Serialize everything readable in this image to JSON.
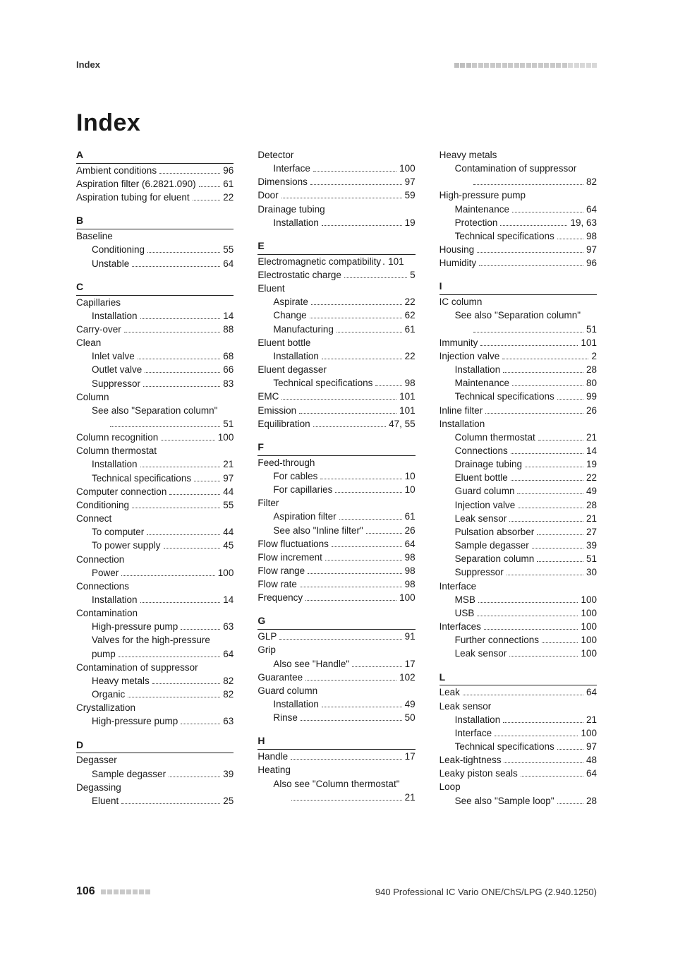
{
  "header": {
    "left": "Index"
  },
  "title": "Index",
  "footer": {
    "page": "106",
    "right": "940 Professional IC Vario ONE/ChS/LPG (2.940.1250)"
  },
  "squares_header": 24,
  "squares_footer": 8,
  "entries": [
    {
      "type": "letter",
      "text": "A",
      "first": true
    },
    {
      "label": "Ambient conditions",
      "pg": "96"
    },
    {
      "label": "Aspiration filter (6.2821.090)",
      "pg": "61"
    },
    {
      "label": "Aspiration tubing for eluent",
      "pg": "22"
    },
    {
      "type": "letter",
      "text": "B"
    },
    {
      "label": "Baseline",
      "nopg": true
    },
    {
      "label": "Conditioning",
      "pg": "55",
      "indent": 1
    },
    {
      "label": "Unstable",
      "pg": "64",
      "indent": 1
    },
    {
      "type": "letter",
      "text": "C"
    },
    {
      "label": "Capillaries",
      "nopg": true
    },
    {
      "label": "Installation",
      "pg": "14",
      "indent": 1
    },
    {
      "label": "Carry-over",
      "pg": "88"
    },
    {
      "label": "Clean",
      "nopg": true
    },
    {
      "label": "Inlet valve",
      "pg": "68",
      "indent": 1
    },
    {
      "label": "Outlet valve",
      "pg": "66",
      "indent": 1
    },
    {
      "label": "Suppressor",
      "pg": "83",
      "indent": 1
    },
    {
      "label": "Column",
      "nopg": true
    },
    {
      "label": "See also \"Separation column\"",
      "indent": 1,
      "nopg": true,
      "noleader": true
    },
    {
      "label": "",
      "pg": "51",
      "indent": 1,
      "leadonly": true
    },
    {
      "label": "Column recognition",
      "pg": "100"
    },
    {
      "label": "Column thermostat",
      "nopg": true
    },
    {
      "label": "Installation",
      "pg": "21",
      "indent": 1
    },
    {
      "label": "Technical specifications",
      "pg": "97",
      "indent": 1
    },
    {
      "label": "Computer connection",
      "pg": "44"
    },
    {
      "label": "Conditioning",
      "pg": "55"
    },
    {
      "label": "Connect",
      "nopg": true
    },
    {
      "label": "To computer",
      "pg": "44",
      "indent": 1
    },
    {
      "label": "To power supply",
      "pg": "45",
      "indent": 1
    },
    {
      "label": "Connection",
      "nopg": true
    },
    {
      "label": "Power",
      "pg": "100",
      "indent": 1
    },
    {
      "label": "Connections",
      "nopg": true
    },
    {
      "label": "Installation",
      "pg": "14",
      "indent": 1
    },
    {
      "label": "Contamination",
      "nopg": true
    },
    {
      "label": "High-pressure pump",
      "pg": "63",
      "indent": 1
    },
    {
      "label": "Valves for the high-pressure",
      "indent": 1,
      "nopg": true,
      "noleader": true
    },
    {
      "label": "pump",
      "pg": "64",
      "indent": 1
    },
    {
      "label": "Contamination of suppressor",
      "nopg": true
    },
    {
      "label": "Heavy metals",
      "pg": "82",
      "indent": 1
    },
    {
      "label": "Organic ",
      "pg": "82",
      "indent": 1
    },
    {
      "label": "Crystallization",
      "nopg": true
    },
    {
      "label": "High-pressure pump",
      "pg": "63",
      "indent": 1
    },
    {
      "type": "letter",
      "text": "D"
    },
    {
      "label": "Degasser",
      "nopg": true
    },
    {
      "label": "Sample degasser",
      "pg": "39",
      "indent": 1
    },
    {
      "label": "Degassing",
      "nopg": true
    },
    {
      "label": "Eluent",
      "pg": "25",
      "indent": 1
    },
    {
      "type": "colbreak"
    },
    {
      "label": "Detector",
      "nopg": true
    },
    {
      "label": "Interface",
      "pg": "100",
      "indent": 1
    },
    {
      "label": "Dimensions",
      "pg": "97"
    },
    {
      "label": "Door",
      "pg": "59"
    },
    {
      "label": "Drainage tubing",
      "nopg": true
    },
    {
      "label": "Installation",
      "pg": "19",
      "indent": 1
    },
    {
      "type": "letter",
      "text": "E"
    },
    {
      "label": "Electromagnetic compatibility",
      "pg": "101",
      "tightsep": true
    },
    {
      "label": "Electrostatic charge",
      "pg": "5"
    },
    {
      "label": "Eluent",
      "nopg": true
    },
    {
      "label": "Aspirate",
      "pg": "22",
      "indent": 1
    },
    {
      "label": "Change",
      "pg": "62",
      "indent": 1
    },
    {
      "label": "Manufacturing",
      "pg": "61",
      "indent": 1
    },
    {
      "label": "Eluent bottle",
      "nopg": true
    },
    {
      "label": "Installation",
      "pg": "22",
      "indent": 1
    },
    {
      "label": "Eluent degasser",
      "nopg": true
    },
    {
      "label": "Technical specifications",
      "pg": "98",
      "indent": 1
    },
    {
      "label": "EMC",
      "pg": "101"
    },
    {
      "label": "Emission",
      "pg": "101"
    },
    {
      "label": "Equilibration",
      "pg": "47, 55"
    },
    {
      "type": "letter",
      "text": "F"
    },
    {
      "label": "Feed-through",
      "nopg": true
    },
    {
      "label": "For cables",
      "pg": "10",
      "indent": 1
    },
    {
      "label": "For capillaries",
      "pg": "10",
      "indent": 1
    },
    {
      "label": "Filter",
      "nopg": true
    },
    {
      "label": "Aspiration filter",
      "pg": "61",
      "indent": 1
    },
    {
      "label": "See also \"Inline filter\"",
      "pg": "26",
      "indent": 1
    },
    {
      "label": "Flow fluctuations",
      "pg": "64"
    },
    {
      "label": "Flow increment",
      "pg": "98"
    },
    {
      "label": "Flow range",
      "pg": "98"
    },
    {
      "label": "Flow rate",
      "pg": "98"
    },
    {
      "label": "Frequency",
      "pg": "100"
    },
    {
      "type": "letter",
      "text": "G"
    },
    {
      "label": "GLP",
      "pg": "91"
    },
    {
      "label": "Grip",
      "nopg": true
    },
    {
      "label": "Also see \"Handle\"",
      "pg": "17",
      "indent": 1
    },
    {
      "label": "Guarantee",
      "pg": "102"
    },
    {
      "label": "Guard column",
      "nopg": true
    },
    {
      "label": "Installation",
      "pg": "49",
      "indent": 1
    },
    {
      "label": "Rinse",
      "pg": "50",
      "indent": 1
    },
    {
      "type": "letter",
      "text": "H"
    },
    {
      "label": "Handle",
      "pg": "17"
    },
    {
      "label": "Heating",
      "nopg": true
    },
    {
      "label": "Also see \"Column thermostat\"",
      "indent": 1,
      "nopg": true,
      "noleader": true
    },
    {
      "label": "",
      "pg": "21",
      "indent": 1,
      "leadonly": true
    },
    {
      "type": "colbreak"
    },
    {
      "label": "Heavy metals",
      "nopg": true
    },
    {
      "label": "Contamination of suppressor",
      "indent": 1,
      "nopg": true,
      "noleader": true
    },
    {
      "label": "",
      "pg": "82",
      "indent": 1,
      "leadonly": true
    },
    {
      "label": "High-pressure pump",
      "nopg": true
    },
    {
      "label": "Maintenance",
      "pg": "64",
      "indent": 1
    },
    {
      "label": "Protection",
      "pg": "19, 63",
      "indent": 1
    },
    {
      "label": "Technical specifications",
      "pg": "98",
      "indent": 1
    },
    {
      "label": "Housing",
      "pg": "97"
    },
    {
      "label": "Humidity",
      "pg": "96"
    },
    {
      "type": "letter",
      "text": "I"
    },
    {
      "label": "IC column",
      "nopg": true
    },
    {
      "label": "See also \"Separation column\"",
      "indent": 1,
      "nopg": true,
      "noleader": true
    },
    {
      "label": "",
      "pg": "51",
      "indent": 1,
      "leadonly": true
    },
    {
      "label": "Immunity",
      "pg": "101"
    },
    {
      "label": "Injection valve",
      "pg": "2"
    },
    {
      "label": "Installation",
      "pg": "28",
      "indent": 1
    },
    {
      "label": "Maintenance",
      "pg": "80",
      "indent": 1
    },
    {
      "label": "Technical specifications",
      "pg": "99",
      "indent": 1
    },
    {
      "label": "Inline filter",
      "pg": "26"
    },
    {
      "label": "Installation",
      "nopg": true
    },
    {
      "label": "Column thermostat",
      "pg": "21",
      "indent": 1
    },
    {
      "label": "Connections",
      "pg": "14",
      "indent": 1
    },
    {
      "label": "Drainage tubing",
      "pg": "19",
      "indent": 1
    },
    {
      "label": "Eluent bottle",
      "pg": "22",
      "indent": 1
    },
    {
      "label": "Guard column",
      "pg": "49",
      "indent": 1
    },
    {
      "label": "Injection valve",
      "pg": "28",
      "indent": 1
    },
    {
      "label": "Leak sensor",
      "pg": "21",
      "indent": 1
    },
    {
      "label": "Pulsation absorber",
      "pg": "27",
      "indent": 1
    },
    {
      "label": "Sample degasser",
      "pg": "39",
      "indent": 1
    },
    {
      "label": "Separation column",
      "pg": "51",
      "indent": 1
    },
    {
      "label": "Suppressor",
      "pg": "30",
      "indent": 1
    },
    {
      "label": "Interface",
      "nopg": true
    },
    {
      "label": "MSB",
      "pg": "100",
      "indent": 1
    },
    {
      "label": "USB",
      "pg": "100",
      "indent": 1
    },
    {
      "label": "Interfaces",
      "pg": "100"
    },
    {
      "label": "Further connections",
      "pg": "100",
      "indent": 1
    },
    {
      "label": "Leak sensor",
      "pg": "100",
      "indent": 1
    },
    {
      "type": "letter",
      "text": "L"
    },
    {
      "label": "Leak",
      "pg": "64"
    },
    {
      "label": "Leak sensor",
      "nopg": true
    },
    {
      "label": "Installation",
      "pg": "21",
      "indent": 1
    },
    {
      "label": "Interface",
      "pg": "100",
      "indent": 1
    },
    {
      "label": "Technical specifications",
      "pg": "97",
      "indent": 1
    },
    {
      "label": "Leak-tightness",
      "pg": "48"
    },
    {
      "label": "Leaky piston seals",
      "pg": "64"
    },
    {
      "label": "Loop",
      "nopg": true
    },
    {
      "label": "See also \"Sample loop\"",
      "pg": "28",
      "indent": 1
    }
  ]
}
